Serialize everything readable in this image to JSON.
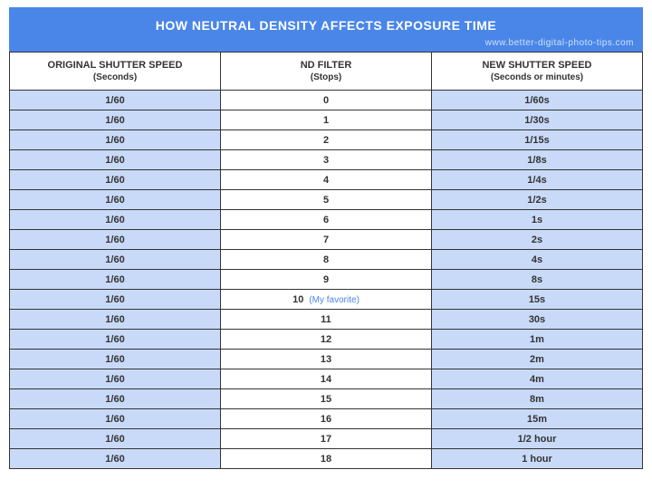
{
  "title": "HOW NEUTRAL DENSITY AFFECTS EXPOSURE TIME",
  "source_url": "www.better-digital-photo-tips.com",
  "colors": {
    "header_bg": "#4a86e8",
    "col1_bg": "#c9daf8",
    "col3_bg": "#c9daf8",
    "border": "#333333",
    "annotation": "#4a86e8"
  },
  "columns": [
    {
      "title": "ORIGINAL SHUTTER SPEED",
      "sub": "(Seconds)"
    },
    {
      "title": "ND FILTER",
      "sub": "(Stops)"
    },
    {
      "title": "NEW SHUTTER SPEED",
      "sub": "(Seconds or minutes)"
    }
  ],
  "rows": [
    {
      "orig": "1/60",
      "stops": "0",
      "annot": "",
      "new": "1/60s"
    },
    {
      "orig": "1/60",
      "stops": "1",
      "annot": "",
      "new": "1/30s"
    },
    {
      "orig": "1/60",
      "stops": "2",
      "annot": "",
      "new": "1/15s"
    },
    {
      "orig": "1/60",
      "stops": "3",
      "annot": "",
      "new": "1/8s"
    },
    {
      "orig": "1/60",
      "stops": "4",
      "annot": "",
      "new": "1/4s"
    },
    {
      "orig": "1/60",
      "stops": "5",
      "annot": "",
      "new": "1/2s"
    },
    {
      "orig": "1/60",
      "stops": "6",
      "annot": "",
      "new": "1s"
    },
    {
      "orig": "1/60",
      "stops": "7",
      "annot": "",
      "new": "2s"
    },
    {
      "orig": "1/60",
      "stops": "8",
      "annot": "",
      "new": "4s"
    },
    {
      "orig": "1/60",
      "stops": "9",
      "annot": "",
      "new": "8s"
    },
    {
      "orig": "1/60",
      "stops": "10",
      "annot": "(My favorite)",
      "new": "15s"
    },
    {
      "orig": "1/60",
      "stops": "11",
      "annot": "",
      "new": "30s"
    },
    {
      "orig": "1/60",
      "stops": "12",
      "annot": "",
      "new": "1m"
    },
    {
      "orig": "1/60",
      "stops": "13",
      "annot": "",
      "new": "2m"
    },
    {
      "orig": "1/60",
      "stops": "14",
      "annot": "",
      "new": "4m"
    },
    {
      "orig": "1/60",
      "stops": "15",
      "annot": "",
      "new": "8m"
    },
    {
      "orig": "1/60",
      "stops": "16",
      "annot": "",
      "new": "15m"
    },
    {
      "orig": "1/60",
      "stops": "17",
      "annot": "",
      "new": "1/2 hour"
    },
    {
      "orig": "1/60",
      "stops": "18",
      "annot": "",
      "new": "1 hour"
    }
  ]
}
